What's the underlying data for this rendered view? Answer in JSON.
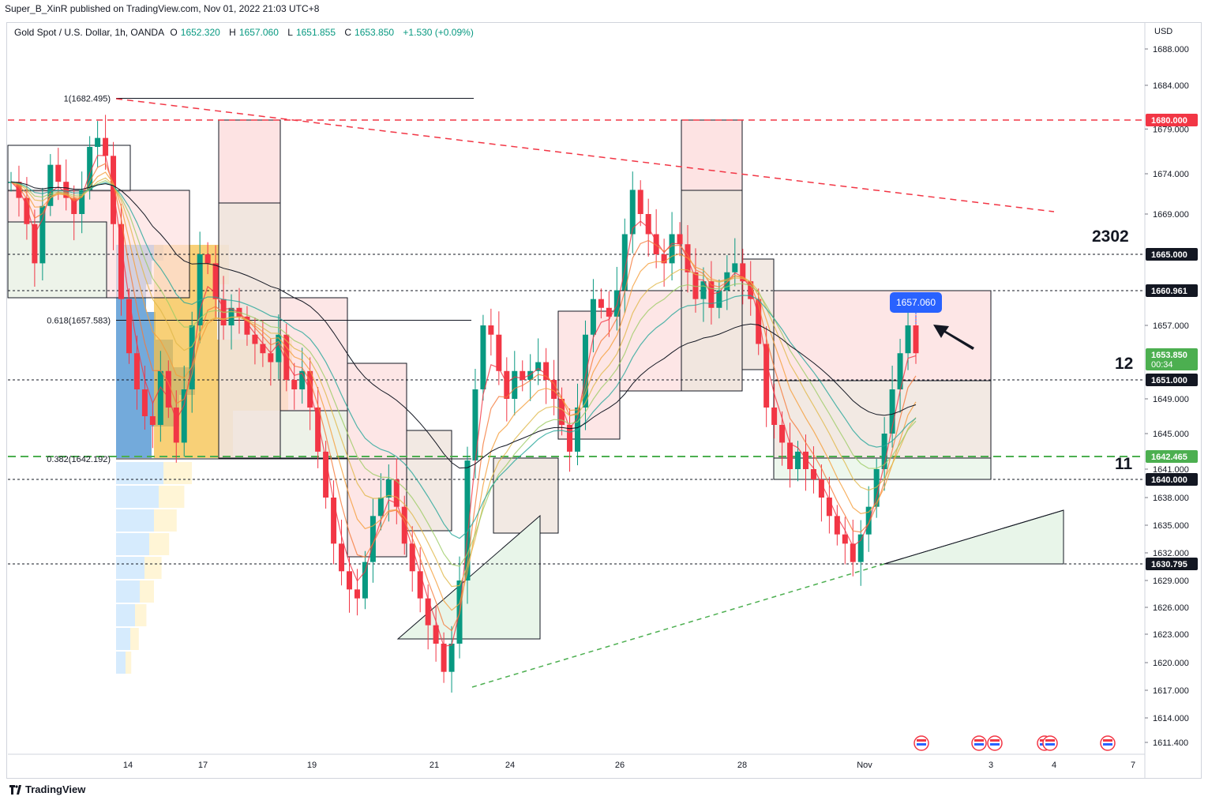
{
  "header": {
    "published": "Super_B_XinR published on TradingView.com, Nov 01, 2022 21:03 UTC+8",
    "symbol": "Gold Spot / U.S. Dollar, 1h, OANDA",
    "open_key": "O",
    "open": "1652.320",
    "high_key": "H",
    "high": "1657.060",
    "low_key": "L",
    "low": "1651.855",
    "close_key": "C",
    "close": "1653.850",
    "change": "+1.530 (+0.09%)",
    "currency": "USD"
  },
  "footer": {
    "brand": "TradingView"
  },
  "annotations": {
    "label_2302": "2302",
    "label_12": "12",
    "label_11": "11",
    "fib_1": "1(1682.495)",
    "fib_0618": "0.618(1657.583)",
    "fib_0382": "0.382(1642.192)",
    "current_price_callout": "1657.060"
  },
  "colors": {
    "bull": "#089981",
    "bear": "#f23645",
    "red_level": "#f23645",
    "green_level": "#4caf50",
    "callout": "#2962ff",
    "black_label": "#131722"
  },
  "chart_data": {
    "type": "candlestick",
    "title": "Gold Spot / U.S. Dollar, 1h, OANDA",
    "ylim": [
      1609,
      1692
    ],
    "y_ticks": [
      "1688.000",
      "1684.000",
      "1679.000",
      "1674.000",
      "1669.000",
      "1657.000",
      "1649.000",
      "1645.000",
      "1641.000",
      "1638.000",
      "1635.000",
      "1632.000",
      "1629.000",
      "1626.000",
      "1623.000",
      "1620.000",
      "1617.000",
      "1614.000",
      "1611.400"
    ],
    "x_ticks": [
      "14",
      "17",
      "19",
      "21",
      "24",
      "26",
      "28",
      "Nov",
      "3",
      "4",
      "7"
    ],
    "price_labels": [
      {
        "value": "1680.000",
        "kind": "red"
      },
      {
        "value": "1665.000",
        "kind": "black"
      },
      {
        "value": "1660.961",
        "kind": "black"
      },
      {
        "value": "1653.850",
        "sub": "00:34",
        "kind": "green"
      },
      {
        "value": "1651.000",
        "kind": "black"
      },
      {
        "value": "1642.465",
        "kind": "green"
      },
      {
        "value": "1640.000",
        "kind": "black"
      },
      {
        "value": "1630.795",
        "kind": "black"
      }
    ],
    "horizontal_levels": [
      {
        "price": 1680.0,
        "style": "red-dashed"
      },
      {
        "price": 1665.0,
        "style": "black-dotted"
      },
      {
        "price": 1660.961,
        "style": "black-dotted"
      },
      {
        "price": 1651.0,
        "style": "black-dotted"
      },
      {
        "price": 1642.465,
        "style": "green-dashed"
      },
      {
        "price": 1640.0,
        "style": "black-dotted"
      },
      {
        "price": 1630.795,
        "style": "black-dotted"
      }
    ],
    "price_path": [
      1673,
      1671,
      1668,
      1664,
      1670,
      1675,
      1673,
      1671,
      1669,
      1672,
      1677,
      1678,
      1676,
      1668,
      1660,
      1654,
      1650,
      1647,
      1646,
      1652,
      1648,
      1644,
      1650,
      1657,
      1665,
      1664,
      1660,
      1657,
      1659,
      1658,
      1656,
      1655,
      1654,
      1653,
      1656,
      1651,
      1650,
      1652,
      1648,
      1643,
      1638,
      1633,
      1630,
      1628,
      1627,
      1631,
      1636,
      1638,
      1640,
      1637,
      1633,
      1630,
      1627,
      1624,
      1622,
      1619,
      1622,
      1629,
      1642,
      1650,
      1657,
      1656,
      1652,
      1649,
      1652,
      1651,
      1652,
      1653,
      1651,
      1649,
      1646,
      1643,
      1648,
      1656,
      1660,
      1659,
      1658,
      1661,
      1667,
      1672,
      1669,
      1667,
      1665,
      1664,
      1667,
      1666,
      1663,
      1660,
      1662,
      1659,
      1661,
      1663,
      1664,
      1662,
      1660,
      1655,
      1648,
      1646,
      1644,
      1641,
      1643,
      1641,
      1640,
      1638,
      1636,
      1634,
      1633,
      1631,
      1634,
      1637,
      1641,
      1645,
      1650,
      1654,
      1657,
      1654
    ]
  }
}
